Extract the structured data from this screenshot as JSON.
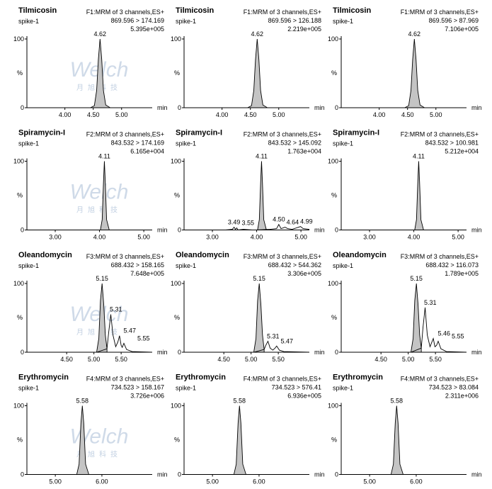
{
  "chart_data": [
    {
      "type": "line",
      "title": "Tilmicosin",
      "subtitle": "spike-1",
      "function": "F1:MRM of 3 channels,ES+",
      "transition": "869.596 > 174.169",
      "intensity": "5.395e+005",
      "y_label": "%",
      "x_label": "min",
      "watermark": {
        "logo": "Welch",
        "text": "月旭科技"
      },
      "xlim": [
        3.33,
        5.54
      ],
      "xticks": [
        {
          "value": 4,
          "label": "4.00"
        },
        {
          "value": 4.5,
          "label": "4.50"
        },
        {
          "value": 5,
          "label": "5.00"
        }
      ],
      "ylim": [
        0,
        100
      ],
      "yticks": [
        0,
        100
      ],
      "series": [
        {
          "color": "#000000",
          "fill": "#c4c4c4",
          "x": [
            4.45,
            4.52,
            4.56,
            4.59,
            4.62,
            4.65,
            4.68,
            4.72,
            4.8
          ],
          "values": [
            0,
            3,
            25,
            70,
            100,
            70,
            25,
            4,
            0
          ]
        },
        {
          "color": "#000000",
          "x": [
            3.33,
            5.54
          ],
          "values": [
            0,
            0
          ]
        }
      ],
      "peaks": [
        4.62
      ]
    },
    {
      "type": "line",
      "title": "Tilmicosin",
      "subtitle": "spike-1",
      "function": "F1:MRM of 3 channels,ES+",
      "transition": "869.596 > 126.188",
      "intensity": "2.219e+005",
      "y_label": "%",
      "x_label": "min",
      "xlim": [
        3.33,
        5.54
      ],
      "xticks": [
        {
          "value": 4,
          "label": "4.00"
        },
        {
          "value": 4.5,
          "label": "4.50"
        },
        {
          "value": 5,
          "label": "5.00"
        }
      ],
      "ylim": [
        0,
        100
      ],
      "yticks": [
        0,
        100
      ],
      "series": [
        {
          "color": "#000000",
          "fill": "#c4c4c4",
          "x": [
            4.45,
            4.52,
            4.56,
            4.59,
            4.62,
            4.65,
            4.68,
            4.72,
            4.8
          ],
          "values": [
            0,
            3,
            25,
            70,
            100,
            70,
            25,
            4,
            0
          ]
        },
        {
          "color": "#000000",
          "x": [
            3.33,
            5.54
          ],
          "values": [
            0,
            0
          ]
        }
      ],
      "peaks": [
        4.62
      ]
    },
    {
      "type": "line",
      "title": "Tilmicosin",
      "subtitle": "spike-1",
      "function": "F1:MRM of 3 channels,ES+",
      "transition": "869.596 > 87.969",
      "intensity": "7.106e+005",
      "y_label": "%",
      "x_label": "min",
      "xlim": [
        3.33,
        5.54
      ],
      "xticks": [
        {
          "value": 4,
          "label": "4.00"
        },
        {
          "value": 4.5,
          "label": "4.50"
        },
        {
          "value": 5,
          "label": "5.00"
        }
      ],
      "ylim": [
        0,
        100
      ],
      "yticks": [
        0,
        100
      ],
      "series": [
        {
          "color": "#000000",
          "fill": "#c4c4c4",
          "x": [
            4.45,
            4.52,
            4.56,
            4.59,
            4.62,
            4.65,
            4.68,
            4.72,
            4.8
          ],
          "values": [
            0,
            3,
            25,
            70,
            100,
            70,
            25,
            4,
            0
          ]
        },
        {
          "color": "#000000",
          "x": [
            3.33,
            5.54
          ],
          "values": [
            0,
            0
          ]
        }
      ],
      "peaks": [
        4.62
      ]
    },
    {
      "type": "line",
      "title": "Spiramycin-I",
      "subtitle": "spike-1",
      "function": "F2:MRM of 3 channels,ES+",
      "transition": "843.532 > 174.169",
      "intensity": "6.165e+004",
      "y_label": "%",
      "x_label": "min",
      "watermark": {
        "logo": "Welch",
        "text": "月旭科技"
      },
      "xlim": [
        2.36,
        5.19
      ],
      "xticks": [
        {
          "value": 3,
          "label": "3.00"
        },
        {
          "value": 4,
          "label": "4.00"
        },
        {
          "value": 5,
          "label": "5.00"
        }
      ],
      "ylim": [
        0,
        100
      ],
      "yticks": [
        0,
        100
      ],
      "series": [
        {
          "color": "#000000",
          "fill": "#c4c4c4",
          "x": [
            4.02,
            4.06,
            4.09,
            4.11,
            4.13,
            4.16,
            4.22
          ],
          "values": [
            0,
            15,
            70,
            100,
            70,
            15,
            0
          ]
        },
        {
          "color": "#000000",
          "x": [
            2.36,
            5.19
          ],
          "values": [
            0,
            0
          ]
        }
      ],
      "peaks": [
        4.11
      ]
    },
    {
      "type": "line",
      "title": "Spiramycin-I",
      "subtitle": "spike-1",
      "function": "F2:MRM of 3 channels,ES+",
      "transition": "843.532 > 145.092",
      "intensity": "1.763e+004",
      "y_label": "%",
      "x_label": "min",
      "xlim": [
        2.36,
        5.19
      ],
      "xticks": [
        {
          "value": 3,
          "label": "3.00"
        },
        {
          "value": 4,
          "label": "4.00"
        },
        {
          "value": 5,
          "label": "5.00"
        }
      ],
      "ylim": [
        0,
        100
      ],
      "yticks": [
        0,
        100
      ],
      "series": [
        {
          "color": "#000000",
          "fill": "#c4c4c4",
          "x": [
            4.02,
            4.06,
            4.09,
            4.11,
            4.13,
            4.16,
            4.22
          ],
          "values": [
            0,
            15,
            70,
            100,
            70,
            15,
            0
          ]
        },
        {
          "color": "#000000",
          "x": [
            2.36,
            3.3,
            3.45,
            3.49,
            3.52,
            3.55,
            3.58,
            3.7,
            3.9,
            4.0,
            4.3,
            4.45,
            4.5,
            4.55,
            4.6,
            4.64,
            4.7,
            4.8,
            4.9,
            4.99,
            5.05,
            5.19
          ],
          "values": [
            0,
            0,
            1,
            4,
            1,
            3,
            0,
            1,
            0,
            0,
            1,
            2,
            8,
            2,
            3,
            4,
            2,
            1,
            3,
            5,
            2,
            1
          ]
        }
      ],
      "peaks": [
        3.49,
        3.55,
        4.11,
        {
          "value": 4.5,
          "label": "4.50"
        },
        4.64,
        4.99
      ]
    },
    {
      "type": "line",
      "title": "Spiramycin-I",
      "subtitle": "spike-1",
      "function": "F2:MRM of 3 channels,ES+",
      "transition": "843.532 > 100.981",
      "intensity": "5.212e+004",
      "y_label": "%",
      "x_label": "min",
      "xlim": [
        2.36,
        5.19
      ],
      "xticks": [
        {
          "value": 3,
          "label": "3.00"
        },
        {
          "value": 4,
          "label": "4.00"
        },
        {
          "value": 5,
          "label": "5.00"
        }
      ],
      "ylim": [
        0,
        100
      ],
      "yticks": [
        0,
        100
      ],
      "series": [
        {
          "color": "#000000",
          "fill": "#c4c4c4",
          "x": [
            4.02,
            4.06,
            4.09,
            4.11,
            4.13,
            4.16,
            4.22
          ],
          "values": [
            0,
            15,
            70,
            100,
            70,
            15,
            0
          ]
        },
        {
          "color": "#000000",
          "x": [
            2.36,
            5.19
          ],
          "values": [
            0,
            0
          ]
        }
      ],
      "peaks": [
        4.11
      ]
    },
    {
      "type": "line",
      "title": "Oleandomycin",
      "subtitle": "spike-1",
      "function": "F3:MRM of 3 channels,ES+",
      "transition": "688.432 > 158.165",
      "intensity": "7.648e+005",
      "y_label": "%",
      "x_label": "min",
      "watermark": {
        "logo": "Welch",
        "text": "月旭科技"
      },
      "xlim": [
        3.77,
        6.07
      ],
      "xticks": [
        {
          "value": 4.5,
          "label": "4.50"
        },
        {
          "value": 5,
          "label": "5.00"
        },
        {
          "value": 5.5,
          "label": "5.50"
        }
      ],
      "ylim": [
        0,
        100
      ],
      "yticks": [
        0,
        100
      ],
      "series": [
        {
          "color": "#000000",
          "fill": "#c4c4c4",
          "x": [
            5.05,
            5.09,
            5.12,
            5.15,
            5.18,
            5.21,
            5.24
          ],
          "values": [
            0,
            20,
            75,
            100,
            70,
            25,
            5
          ]
        },
        {
          "color": "#000000",
          "x": [
            3.77,
            5.05,
            5.24,
            5.27,
            5.31,
            5.35,
            5.4,
            5.44,
            5.47,
            5.5,
            5.52,
            5.55,
            5.6,
            5.7,
            6.07
          ],
          "values": [
            0,
            0,
            5,
            28,
            55,
            25,
            8,
            15,
            24,
            10,
            7,
            13,
            4,
            1,
            0
          ]
        }
      ],
      "peaks": [
        5.15,
        5.31,
        5.47,
        5.55
      ]
    },
    {
      "type": "line",
      "title": "Oleandomycin",
      "subtitle": "spike-1",
      "function": "F3:MRM of 3 channels,ES+",
      "transition": "688.432 > 544.362",
      "intensity": "3.306e+005",
      "y_label": "%",
      "x_label": "min",
      "xlim": [
        3.77,
        6.07
      ],
      "xticks": [
        {
          "value": 4.5,
          "label": "4.50"
        },
        {
          "value": 5,
          "label": "5.00"
        },
        {
          "value": 5.5,
          "label": "5.50"
        }
      ],
      "ylim": [
        0,
        100
      ],
      "yticks": [
        0,
        100
      ],
      "series": [
        {
          "color": "#000000",
          "fill": "#c4c4c4",
          "x": [
            5.05,
            5.09,
            5.12,
            5.15,
            5.18,
            5.21,
            5.24
          ],
          "values": [
            0,
            20,
            75,
            100,
            70,
            25,
            4
          ]
        },
        {
          "color": "#000000",
          "x": [
            3.77,
            5.05,
            5.24,
            5.27,
            5.31,
            5.35,
            5.4,
            5.44,
            5.47,
            5.52,
            5.6,
            6.07
          ],
          "values": [
            0,
            0,
            4,
            10,
            16,
            6,
            3,
            6,
            9,
            3,
            1,
            0
          ]
        }
      ],
      "peaks": [
        5.15,
        5.31,
        5.47
      ]
    },
    {
      "type": "line",
      "title": "Oleandomycin",
      "subtitle": "spike-1",
      "function": "F3:MRM of 3 channels,ES+",
      "transition": "688.432 > 116.073",
      "intensity": "1.789e+005",
      "y_label": "%",
      "x_label": "min",
      "xlim": [
        3.77,
        6.07
      ],
      "xticks": [
        {
          "value": 4.5,
          "label": "4.50"
        },
        {
          "value": 5,
          "label": "5.00"
        },
        {
          "value": 5.5,
          "label": "5.50"
        }
      ],
      "ylim": [
        0,
        100
      ],
      "yticks": [
        0,
        100
      ],
      "series": [
        {
          "color": "#000000",
          "fill": "#c4c4c4",
          "x": [
            5.05,
            5.09,
            5.12,
            5.15,
            5.18,
            5.21,
            5.24
          ],
          "values": [
            0,
            20,
            75,
            100,
            70,
            25,
            6
          ]
        },
        {
          "color": "#000000",
          "x": [
            3.77,
            5.05,
            5.24,
            5.27,
            5.31,
            5.35,
            5.4,
            5.43,
            5.46,
            5.49,
            5.52,
            5.55,
            5.6,
            5.7,
            6.07
          ],
          "values": [
            0,
            0,
            6,
            35,
            65,
            25,
            8,
            14,
            20,
            8,
            10,
            16,
            5,
            1,
            0
          ]
        }
      ],
      "peaks": [
        5.15,
        5.31,
        5.46,
        5.55
      ]
    },
    {
      "type": "line",
      "title": "Erythromycin",
      "subtitle": "spike-1",
      "function": "F4:MRM of 3 channels,ES+",
      "transition": "734.523 > 158.167",
      "intensity": "3.726e+006",
      "y_label": "%",
      "x_label": "min",
      "watermark": {
        "logo": "Welch",
        "text": "月旭科技"
      },
      "xlim": [
        4.39,
        7.08
      ],
      "xticks": [
        {
          "value": 5,
          "label": "5.00"
        },
        {
          "value": 6,
          "label": "6.00"
        }
      ],
      "ylim": [
        0,
        100
      ],
      "yticks": [
        0,
        100
      ],
      "series": [
        {
          "color": "#000000",
          "fill": "#c4c4c4",
          "x": [
            5.46,
            5.51,
            5.55,
            5.58,
            5.61,
            5.65,
            5.72
          ],
          "values": [
            0,
            15,
            75,
            100,
            75,
            15,
            0
          ]
        },
        {
          "color": "#000000",
          "x": [
            4.39,
            7.08
          ],
          "values": [
            0,
            0
          ]
        }
      ],
      "peaks": [
        5.58
      ]
    },
    {
      "type": "line",
      "title": "Erythromycin",
      "subtitle": "spike-1",
      "function": "F4:MRM of 3 channels,ES+",
      "transition": "734.523 > 576.41",
      "intensity": "6.936e+005",
      "y_label": "%",
      "x_label": "min",
      "xlim": [
        4.39,
        7.08
      ],
      "xticks": [
        {
          "value": 5,
          "label": "5.00"
        },
        {
          "value": 6,
          "label": "6.00"
        }
      ],
      "ylim": [
        0,
        100
      ],
      "yticks": [
        0,
        100
      ],
      "series": [
        {
          "color": "#000000",
          "fill": "#c4c4c4",
          "x": [
            5.46,
            5.51,
            5.55,
            5.58,
            5.61,
            5.65,
            5.72
          ],
          "values": [
            0,
            15,
            75,
            100,
            75,
            15,
            0
          ]
        },
        {
          "color": "#000000",
          "x": [
            4.39,
            7.08
          ],
          "values": [
            0,
            0
          ]
        }
      ],
      "peaks": [
        5.58
      ]
    },
    {
      "type": "line",
      "title": "Erythromycin",
      "subtitle": "spike-1",
      "function": "F4:MRM of 3 channels,ES+",
      "transition": "734.523 > 83.084",
      "intensity": "2.311e+006",
      "y_label": "%",
      "x_label": "min",
      "xlim": [
        4.39,
        7.08
      ],
      "xticks": [
        {
          "value": 5,
          "label": "5.00"
        },
        {
          "value": 6,
          "label": "6.00"
        }
      ],
      "ylim": [
        0,
        100
      ],
      "yticks": [
        0,
        100
      ],
      "series": [
        {
          "color": "#000000",
          "fill": "#c4c4c4",
          "x": [
            5.46,
            5.51,
            5.55,
            5.58,
            5.61,
            5.65,
            5.72
          ],
          "values": [
            0,
            15,
            75,
            100,
            75,
            15,
            0
          ]
        },
        {
          "color": "#000000",
          "x": [
            4.39,
            7.08
          ],
          "values": [
            0,
            0
          ]
        }
      ],
      "peaks": [
        5.58
      ]
    }
  ]
}
